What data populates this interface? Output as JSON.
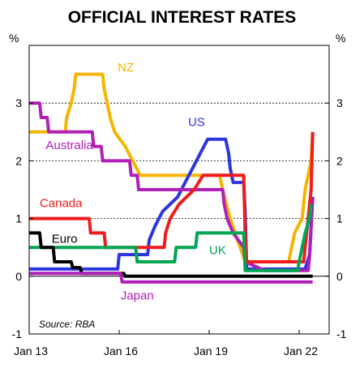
{
  "chart_data": {
    "type": "line",
    "title": "OFFICIAL INTEREST RATES",
    "y_unit_left": "%",
    "y_unit_right": "%",
    "source": "Source: RBA",
    "xlim": [
      2013.0,
      2023.0
    ],
    "ylim": [
      -1,
      4
    ],
    "x_ticks": [
      {
        "label": "Jan 13",
        "x": 2013.0
      },
      {
        "label": "Jan 16",
        "x": 2016.0
      },
      {
        "label": "Jan 19",
        "x": 2019.0
      },
      {
        "label": "Jan 22",
        "x": 2022.0
      }
    ],
    "y_ticks": [
      {
        "label": "-1",
        "y": -1
      },
      {
        "label": "0",
        "y": 0
      },
      {
        "label": "1",
        "y": 1
      },
      {
        "label": "2",
        "y": 2
      },
      {
        "label": "3",
        "y": 3
      }
    ],
    "gridlines": [
      1,
      2,
      3
    ],
    "series": [
      {
        "name": "NZ",
        "color": "#f5b400",
        "points": [
          [
            2013.0,
            2.5
          ],
          [
            2014.2,
            2.5
          ],
          [
            2014.25,
            2.75
          ],
          [
            2014.4,
            3.0
          ],
          [
            2014.5,
            3.25
          ],
          [
            2014.55,
            3.5
          ],
          [
            2015.45,
            3.5
          ],
          [
            2015.5,
            3.25
          ],
          [
            2015.6,
            3.0
          ],
          [
            2015.7,
            2.75
          ],
          [
            2015.85,
            2.5
          ],
          [
            2016.2,
            2.25
          ],
          [
            2016.45,
            2.0
          ],
          [
            2016.7,
            1.75
          ],
          [
            2019.35,
            1.75
          ],
          [
            2019.45,
            1.5
          ],
          [
            2019.7,
            1.0
          ],
          [
            2020.2,
            0.25
          ],
          [
            2021.65,
            0.25
          ],
          [
            2021.75,
            0.5
          ],
          [
            2021.85,
            0.75
          ],
          [
            2022.1,
            1.0
          ],
          [
            2022.2,
            1.5
          ],
          [
            2022.4,
            2.0
          ],
          [
            2022.45,
            2.5
          ]
        ]
      },
      {
        "name": "US",
        "color": "#2d35e0",
        "points": [
          [
            2013.0,
            0.125
          ],
          [
            2015.95,
            0.125
          ],
          [
            2016.0,
            0.375
          ],
          [
            2016.95,
            0.375
          ],
          [
            2017.0,
            0.625
          ],
          [
            2017.2,
            0.875
          ],
          [
            2017.45,
            1.125
          ],
          [
            2017.95,
            1.375
          ],
          [
            2018.2,
            1.625
          ],
          [
            2018.45,
            1.875
          ],
          [
            2018.7,
            2.125
          ],
          [
            2018.95,
            2.375
          ],
          [
            2019.55,
            2.375
          ],
          [
            2019.65,
            2.125
          ],
          [
            2019.7,
            1.875
          ],
          [
            2019.8,
            1.625
          ],
          [
            2020.15,
            1.625
          ],
          [
            2020.2,
            1.125
          ],
          [
            2020.25,
            0.125
          ],
          [
            2022.2,
            0.125
          ],
          [
            2022.35,
            0.375
          ],
          [
            2022.4,
            0.875
          ],
          [
            2022.45,
            1.375
          ]
        ]
      },
      {
        "name": "Australia",
        "color": "#b01fb8",
        "points": [
          [
            2013.0,
            3.0
          ],
          [
            2013.35,
            3.0
          ],
          [
            2013.4,
            2.75
          ],
          [
            2013.6,
            2.75
          ],
          [
            2013.65,
            2.5
          ],
          [
            2015.1,
            2.5
          ],
          [
            2015.15,
            2.25
          ],
          [
            2015.4,
            2.25
          ],
          [
            2015.45,
            2.0
          ],
          [
            2016.35,
            2.0
          ],
          [
            2016.4,
            1.75
          ],
          [
            2016.6,
            1.75
          ],
          [
            2016.65,
            1.5
          ],
          [
            2019.45,
            1.5
          ],
          [
            2019.5,
            1.25
          ],
          [
            2019.6,
            1.0
          ],
          [
            2019.8,
            0.75
          ],
          [
            2020.15,
            0.5
          ],
          [
            2020.2,
            0.25
          ],
          [
            2020.85,
            0.1
          ],
          [
            2022.3,
            0.1
          ],
          [
            2022.35,
            0.35
          ],
          [
            2022.4,
            0.85
          ],
          [
            2022.45,
            1.35
          ]
        ]
      },
      {
        "name": "Canada",
        "color": "#ee1c1c",
        "points": [
          [
            2013.0,
            1.0
          ],
          [
            2015.0,
            1.0
          ],
          [
            2015.05,
            0.75
          ],
          [
            2015.5,
            0.75
          ],
          [
            2015.55,
            0.5
          ],
          [
            2017.5,
            0.5
          ],
          [
            2017.55,
            0.75
          ],
          [
            2017.7,
            1.0
          ],
          [
            2018.0,
            1.25
          ],
          [
            2018.5,
            1.5
          ],
          [
            2018.8,
            1.75
          ],
          [
            2020.15,
            1.75
          ],
          [
            2020.2,
            0.75
          ],
          [
            2020.25,
            0.25
          ],
          [
            2022.15,
            0.25
          ],
          [
            2022.2,
            0.5
          ],
          [
            2022.3,
            1.0
          ],
          [
            2022.4,
            1.5
          ],
          [
            2022.45,
            2.5
          ]
        ]
      },
      {
        "name": "UK",
        "color": "#00a651",
        "points": [
          [
            2013.0,
            0.5
          ],
          [
            2016.55,
            0.5
          ],
          [
            2016.6,
            0.25
          ],
          [
            2017.85,
            0.25
          ],
          [
            2017.9,
            0.5
          ],
          [
            2018.55,
            0.5
          ],
          [
            2018.6,
            0.75
          ],
          [
            2020.15,
            0.75
          ],
          [
            2020.2,
            0.1
          ],
          [
            2021.95,
            0.1
          ],
          [
            2022.0,
            0.25
          ],
          [
            2022.1,
            0.5
          ],
          [
            2022.2,
            0.75
          ],
          [
            2022.35,
            1.0
          ],
          [
            2022.4,
            1.25
          ]
        ]
      },
      {
        "name": "Euro",
        "color": "#000000",
        "points": [
          [
            2013.0,
            0.75
          ],
          [
            2013.35,
            0.75
          ],
          [
            2013.4,
            0.5
          ],
          [
            2013.8,
            0.5
          ],
          [
            2013.85,
            0.25
          ],
          [
            2014.4,
            0.25
          ],
          [
            2014.45,
            0.15
          ],
          [
            2014.7,
            0.15
          ],
          [
            2014.75,
            0.05
          ],
          [
            2016.15,
            0.05
          ],
          [
            2016.2,
            0.0
          ],
          [
            2022.45,
            0.0
          ]
        ]
      },
      {
        "name": "Japan",
        "color": "#b01fb8",
        "points": [
          [
            2013.0,
            0.05
          ],
          [
            2016.05,
            0.05
          ],
          [
            2016.1,
            -0.1
          ],
          [
            2022.45,
            -0.1
          ]
        ]
      }
    ],
    "series_labels": [
      {
        "name": "NZ",
        "color": "#f5b400",
        "x": 2015.95,
        "y": 3.55
      },
      {
        "name": "US",
        "color": "#2d35e0",
        "x": 2018.3,
        "y": 2.6
      },
      {
        "name": "Australia",
        "color": "#b01fb8",
        "x": 2013.55,
        "y": 2.2
      },
      {
        "name": "Canada",
        "color": "#ee1c1c",
        "x": 2013.35,
        "y": 1.2
      },
      {
        "name": "Euro",
        "color": "#000000",
        "x": 2013.75,
        "y": 0.58
      },
      {
        "name": "UK",
        "color": "#00a651",
        "x": 2019.0,
        "y": 0.38
      },
      {
        "name": "Japan",
        "color": "#b01fb8",
        "x": 2016.05,
        "y": -0.4
      }
    ]
  }
}
